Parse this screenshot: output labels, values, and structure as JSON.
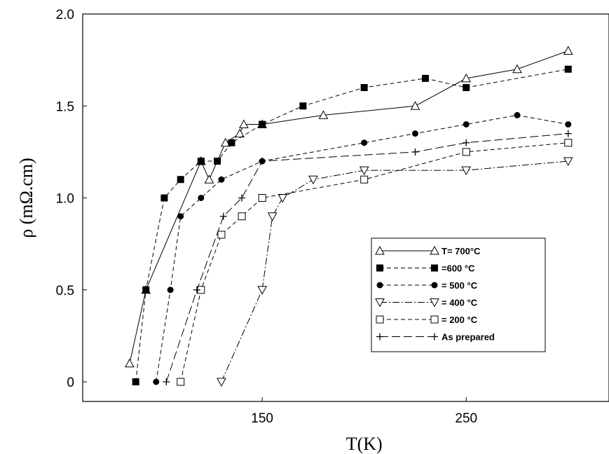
{
  "chart_data": {
    "type": "line",
    "xlabel": "T(K)",
    "ylabel": "ρ (mΩ.cm)",
    "xlim": [
      62,
      320
    ],
    "ylim": [
      0,
      2.0
    ],
    "x_ticks": [
      150,
      250
    ],
    "y_ticks": [
      0,
      0.5,
      1.0,
      1.5,
      2.0
    ],
    "x_tick_labels": [
      "150",
      "250"
    ],
    "y_tick_labels": [
      "0",
      "0.5",
      "1.0",
      "1.5",
      "2.0"
    ],
    "grid": false,
    "legend_position": "bottom-right",
    "series": [
      {
        "name": "T= 700°C",
        "marker": "triangle-up",
        "dash": "solid",
        "points": [
          [
            85,
            0.1
          ],
          [
            93,
            0.5
          ],
          [
            120,
            1.2
          ],
          [
            124,
            1.1
          ],
          [
            132,
            1.3
          ],
          [
            139,
            1.35
          ],
          [
            141,
            1.4
          ],
          [
            150,
            1.4
          ],
          [
            180,
            1.45
          ],
          [
            225,
            1.5
          ],
          [
            250,
            1.65
          ],
          [
            275,
            1.7
          ],
          [
            300,
            1.8
          ]
        ]
      },
      {
        "name": "=600 °C",
        "marker": "square-filled",
        "dash": "dashed",
        "points": [
          [
            88,
            0
          ],
          [
            93,
            0.5
          ],
          [
            102,
            1.0
          ],
          [
            110,
            1.1
          ],
          [
            120,
            1.2
          ],
          [
            128,
            1.2
          ],
          [
            135,
            1.3
          ],
          [
            150,
            1.4
          ],
          [
            170,
            1.5
          ],
          [
            200,
            1.6
          ],
          [
            230,
            1.65
          ],
          [
            250,
            1.6
          ],
          [
            300,
            1.7
          ]
        ]
      },
      {
        "name": "= 500 °C",
        "marker": "circle-filled",
        "dash": "dashed",
        "points": [
          [
            98,
            0
          ],
          [
            105,
            0.5
          ],
          [
            110,
            0.9
          ],
          [
            120,
            1.0
          ],
          [
            130,
            1.1
          ],
          [
            150,
            1.2
          ],
          [
            200,
            1.3
          ],
          [
            225,
            1.35
          ],
          [
            250,
            1.4
          ],
          [
            275,
            1.45
          ],
          [
            300,
            1.4
          ]
        ]
      },
      {
        "name": "= 400 °C",
        "marker": "triangle-down",
        "dash": "dashdot",
        "points": [
          [
            130,
            0
          ],
          [
            150,
            0.5
          ],
          [
            155,
            0.9
          ],
          [
            160,
            1.0
          ],
          [
            175,
            1.1
          ],
          [
            200,
            1.15
          ],
          [
            250,
            1.15
          ],
          [
            300,
            1.2
          ]
        ]
      },
      {
        "name": "= 200 °C",
        "marker": "square-open",
        "dash": "dashed",
        "points": [
          [
            110,
            0
          ],
          [
            120,
            0.5
          ],
          [
            130,
            0.8
          ],
          [
            140,
            0.9
          ],
          [
            150,
            1.0
          ],
          [
            200,
            1.1
          ],
          [
            250,
            1.25
          ],
          [
            300,
            1.3
          ]
        ]
      },
      {
        "name": "As prepared",
        "marker": "plus",
        "dash": "longdash",
        "points": [
          [
            103,
            0
          ],
          [
            118,
            0.5
          ],
          [
            131,
            0.9
          ],
          [
            140,
            1.0
          ],
          [
            150,
            1.2
          ],
          [
            225,
            1.25
          ],
          [
            250,
            1.3
          ],
          [
            300,
            1.35
          ]
        ]
      }
    ]
  }
}
